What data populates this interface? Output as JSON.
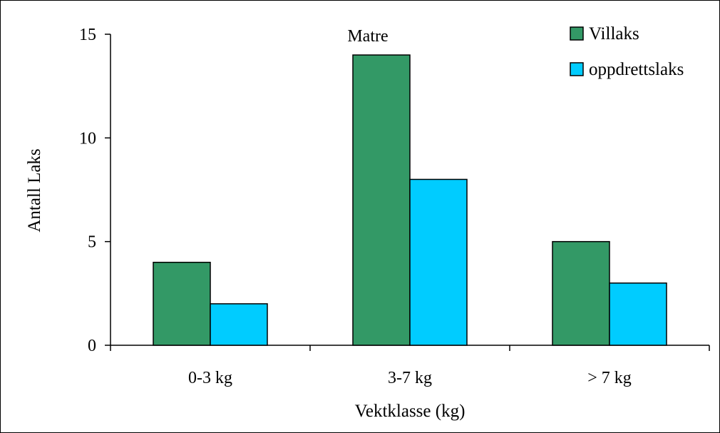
{
  "chart_data": {
    "type": "bar",
    "title": "Matre",
    "categories": [
      "0-3 kg",
      "3-7 kg",
      "> 7 kg"
    ],
    "series": [
      {
        "name": "Villaks",
        "values": [
          4,
          14,
          5
        ],
        "color": "#339966"
      },
      {
        "name": "oppdrettslaks",
        "values": [
          2,
          8,
          3
        ],
        "color": "#00ccff"
      }
    ],
    "xlabel": "Vektklasse (kg)",
    "ylabel": "Antall Laks",
    "ylim": [
      0,
      15
    ],
    "yticks": [
      0,
      5,
      10,
      15
    ],
    "grid": false,
    "legend_position": "top-right"
  }
}
